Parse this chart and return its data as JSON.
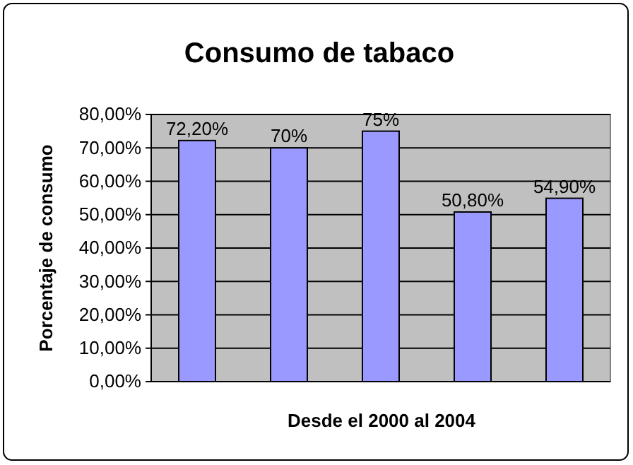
{
  "chart_data": {
    "type": "bar",
    "title": "Consumo de tabaco",
    "xlabel": "Desde el 2000 al 2004",
    "ylabel": "Porcentaje de consumo",
    "categories": [
      null,
      null,
      null,
      null,
      null
    ],
    "values": [
      72.2,
      70,
      75,
      50.8,
      54.9
    ],
    "value_labels": [
      "72,20%",
      "70%",
      "75%",
      "50,80%",
      "54,90%"
    ],
    "color": "#9999ff",
    "ylim": [
      0,
      80
    ],
    "yticks": [
      {
        "value": 0,
        "label": "0,00%"
      },
      {
        "value": 10,
        "label": "10,00%"
      },
      {
        "value": 20,
        "label": "20,00%"
      },
      {
        "value": 30,
        "label": "30,00%"
      },
      {
        "value": 40,
        "label": "40,00%"
      },
      {
        "value": 50,
        "label": "50,00%"
      },
      {
        "value": 60,
        "label": "60,00%"
      },
      {
        "value": 70,
        "label": "70,00%"
      },
      {
        "value": 80,
        "label": "80,00%"
      }
    ],
    "grid": "y"
  }
}
